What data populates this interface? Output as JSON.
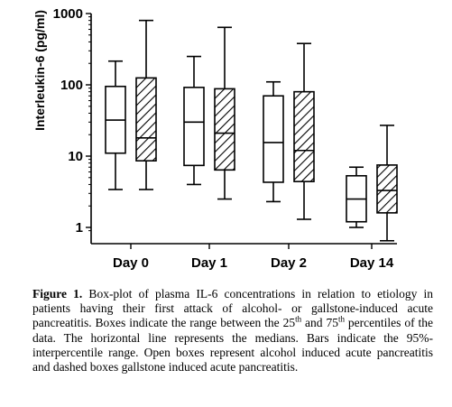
{
  "chart_data": {
    "type": "box",
    "ylabel": "Interleukin-6 (pg/ml)",
    "yscale": "log",
    "ylim": [
      0.8,
      1000
    ],
    "yticks": [
      {
        "value": 1,
        "label": "1"
      },
      {
        "value": 10,
        "label": "10"
      },
      {
        "value": 100,
        "label": "100"
      },
      {
        "value": 1000,
        "label": "1000"
      }
    ],
    "categories": [
      "Day 0",
      "Day 1",
      "Day 2",
      "Day 14"
    ],
    "series": [
      {
        "style": "open",
        "boxes": [
          {
            "low": 3.4,
            "q1": 11,
            "median": 32,
            "q3": 95,
            "high": 215
          },
          {
            "low": 4.0,
            "q1": 7.4,
            "median": 30,
            "q3": 92,
            "high": 250
          },
          {
            "low": 2.3,
            "q1": 4.3,
            "median": 15.5,
            "q3": 70,
            "high": 110
          },
          {
            "low": 1.0,
            "q1": 1.2,
            "median": 2.5,
            "q3": 5.3,
            "high": 7.0
          }
        ]
      },
      {
        "style": "hatched",
        "boxes": [
          {
            "low": 3.4,
            "q1": 8.6,
            "median": 18,
            "q3": 125,
            "high": 800
          },
          {
            "low": 2.5,
            "q1": 6.4,
            "median": 21,
            "q3": 88,
            "high": 640
          },
          {
            "low": 1.3,
            "q1": 4.4,
            "median": 12,
            "q3": 80,
            "high": 380
          },
          {
            "low": 0.65,
            "q1": 1.6,
            "median": 3.3,
            "q3": 7.5,
            "high": 27
          }
        ]
      }
    ],
    "grid": false
  },
  "caption": {
    "label": "Figure 1.",
    "text_1": " Box-plot of plasma IL-6 concentrations in relation to etiology in patients having their first attack of alcohol- or gallstone-induced acute pancreatitis. Boxes indicate the range between the 25",
    "sup_1": "th",
    "text_2": " and 75",
    "sup_2": "th",
    "text_3": " percentiles of the data. The horizontal line represents the medians. Bars indicate the 95%-interpercentile range. Open boxes represent alcohol induced acute pancreatitis and dashed boxes gallstone induced acute pancreatitis."
  }
}
